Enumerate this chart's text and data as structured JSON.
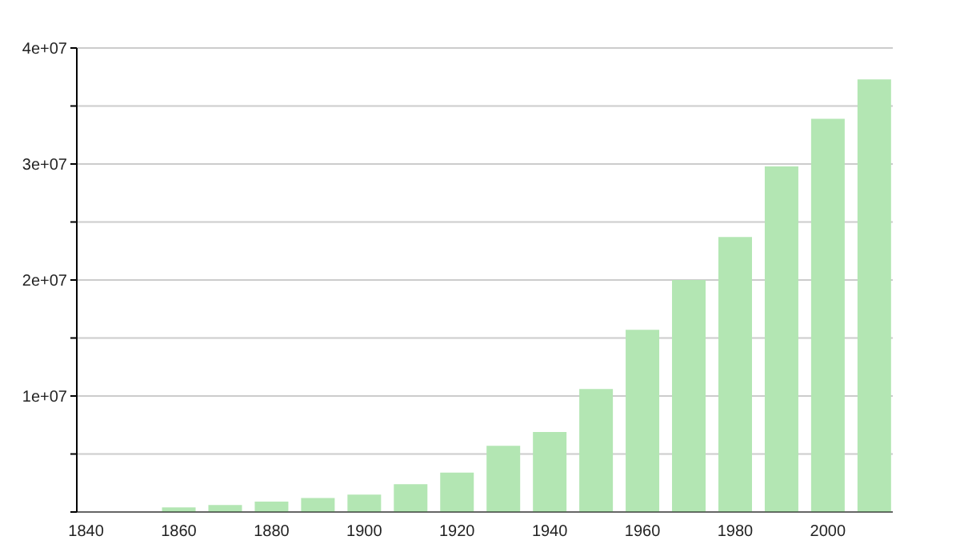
{
  "chart_data": {
    "type": "bar",
    "x": [
      1860,
      1870,
      1880,
      1890,
      1900,
      1910,
      1920,
      1930,
      1940,
      1950,
      1960,
      1970,
      1980,
      1990,
      2000,
      2010
    ],
    "values": [
      400000,
      600000,
      900000,
      1200000,
      1500000,
      2400000,
      3400000,
      5700000,
      6900000,
      10600000,
      15700000,
      20000000,
      23700000,
      29800000,
      33900000,
      37300000
    ],
    "color": "#b3e6b3",
    "xlim": [
      1838,
      2014
    ],
    "xticks": [
      1840,
      1860,
      1880,
      1900,
      1920,
      1940,
      1960,
      1980,
      2000
    ],
    "ylim": [
      0,
      40000000
    ],
    "yticks": [
      {
        "value": 0,
        "label": null
      },
      {
        "value": 5000000,
        "label": null
      },
      {
        "value": 10000000,
        "label": "1e+07"
      },
      {
        "value": 15000000,
        "label": null
      },
      {
        "value": 20000000,
        "label": "2e+07"
      },
      {
        "value": 25000000,
        "label": null
      },
      {
        "value": 30000000,
        "label": "3e+07"
      },
      {
        "value": 35000000,
        "label": null
      },
      {
        "value": 40000000,
        "label": "4e+07"
      }
    ],
    "grid": "y"
  }
}
